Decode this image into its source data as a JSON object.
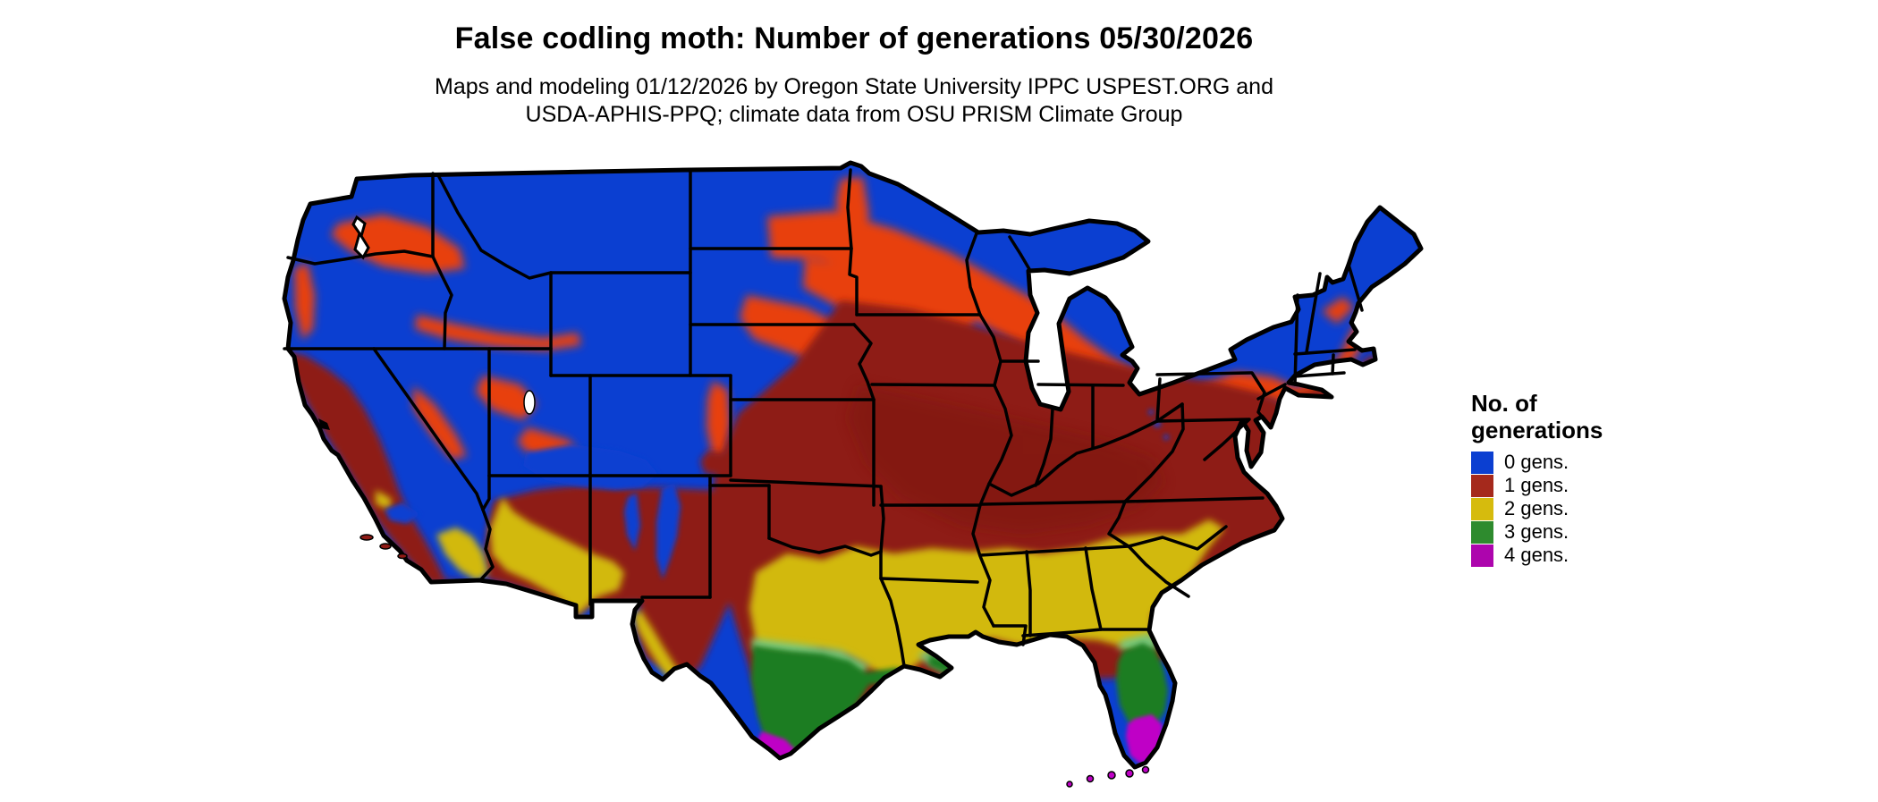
{
  "title": "False codling moth: Number of generations 05/30/2026",
  "subtitle": {
    "line1": "Maps and modeling 01/12/2026 by Oregon State University IPPC USPEST.ORG and",
    "line2": "USDA-APHIS-PPQ; climate data from OSU PRISM Climate Group"
  },
  "legend": {
    "title_line1": "No. of",
    "title_line2": "generations",
    "items": [
      {
        "label": "0 gens.",
        "color": "#0b3fd1"
      },
      {
        "label": "1 gens.",
        "color": "#a5291c"
      },
      {
        "label": "2 gens.",
        "color": "#d6bb0d"
      },
      {
        "label": "3 gens.",
        "color": "#2e8b2e"
      },
      {
        "label": "4 gens.",
        "color": "#ad05ad"
      }
    ]
  },
  "map_data": {
    "type": "choropleth-raster",
    "region": "Contiguous United States",
    "variable": "Number of generations of false codling moth",
    "forecast_date": "05/30/2026",
    "zones": [
      {
        "value": "0 generations",
        "color": "#0b3fd1",
        "areas": "Mountain West, northern Plains, Upper Midwest, northern Great Lakes, Adirondacks and northern New England, high elevations"
      },
      {
        "value": "1 generation",
        "color": "#8e1a15",
        "transition_color": "#e8400f",
        "areas": "Pacific coastal valleys, central and southern Plains, Corn Belt, Ohio Valley, Mid-Atlantic, Upland South, interior Southwest"
      },
      {
        "value": "2 generations",
        "color": "#d2b90e",
        "areas": "Central Texas, Gulf South, Southeast coastal plain, north Florida, low deserts of Arizona and southeastern California"
      },
      {
        "value": "3 generations",
        "color": "#1a7d20",
        "areas": "South Texas, immediate Gulf Coast fringe, central Florida peninsula"
      },
      {
        "value": "4 generations",
        "color": "#bf00c6",
        "areas": "Lower Rio Grande Valley of Texas, South Florida and the Florida Keys"
      }
    ]
  }
}
